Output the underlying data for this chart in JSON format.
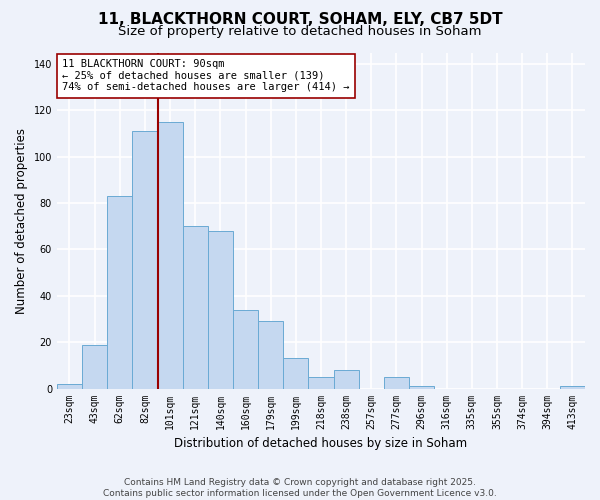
{
  "title": "11, BLACKTHORN COURT, SOHAM, ELY, CB7 5DT",
  "subtitle": "Size of property relative to detached houses in Soham",
  "xlabel": "Distribution of detached houses by size in Soham",
  "ylabel": "Number of detached properties",
  "categories": [
    "23sqm",
    "43sqm",
    "62sqm",
    "82sqm",
    "101sqm",
    "121sqm",
    "140sqm",
    "160sqm",
    "179sqm",
    "199sqm",
    "218sqm",
    "238sqm",
    "257sqm",
    "277sqm",
    "296sqm",
    "316sqm",
    "335sqm",
    "355sqm",
    "374sqm",
    "394sqm",
    "413sqm"
  ],
  "values": [
    2,
    19,
    83,
    111,
    115,
    70,
    68,
    34,
    29,
    13,
    5,
    8,
    0,
    5,
    1,
    0,
    0,
    0,
    0,
    0,
    1
  ],
  "bar_color": "#c5d8f0",
  "bar_edge_color": "#6aaad4",
  "vline_color": "#990000",
  "vline_xindex": 3.5,
  "annotation_text": "11 BLACKTHORN COURT: 90sqm\n← 25% of detached houses are smaller (139)\n74% of semi-detached houses are larger (414) →",
  "annotation_box_facecolor": "#ffffff",
  "annotation_box_edgecolor": "#990000",
  "ylim": [
    0,
    145
  ],
  "yticks": [
    0,
    20,
    40,
    60,
    80,
    100,
    120,
    140
  ],
  "footer_line1": "Contains HM Land Registry data © Crown copyright and database right 2025.",
  "footer_line2": "Contains public sector information licensed under the Open Government Licence v3.0.",
  "background_color": "#eef2fa",
  "grid_color": "#ffffff",
  "title_fontsize": 11,
  "subtitle_fontsize": 9.5,
  "ylabel_fontsize": 8.5,
  "xlabel_fontsize": 8.5,
  "tick_fontsize": 7,
  "annotation_fontsize": 7.5,
  "footer_fontsize": 6.5
}
